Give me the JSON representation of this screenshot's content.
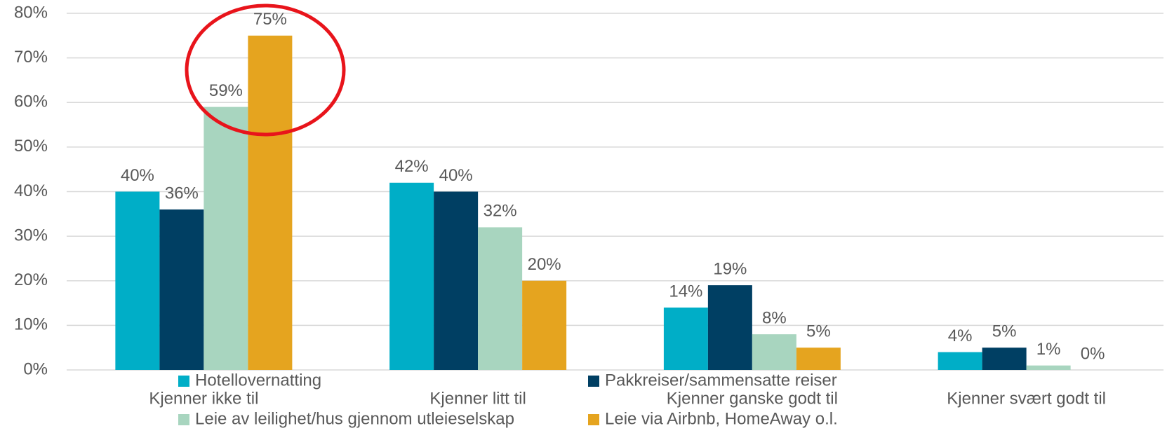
{
  "chart_data": {
    "type": "bar",
    "categories": [
      "Kjenner ikke til",
      "Kjenner litt til",
      "Kjenner ganske godt til",
      "Kjenner svært godt til"
    ],
    "series": [
      {
        "name": "Hotellovernatting",
        "color": "#00aec7",
        "values": [
          40,
          42,
          14,
          4
        ],
        "value_labels": [
          "40%",
          "42%",
          "14%",
          "4%"
        ]
      },
      {
        "name": "Pakkreiser/sammensatte reiser",
        "color": "#003f63",
        "values": [
          36,
          40,
          19,
          5
        ],
        "value_labels": [
          "36%",
          "40%",
          "19%",
          "5%"
        ]
      },
      {
        "name": "Leie av leilighet/hus gjennom utleieselskap",
        "color": "#a8d5bf",
        "values": [
          59,
          32,
          8,
          1
        ],
        "value_labels": [
          "59%",
          "32%",
          "8%",
          "1%"
        ]
      },
      {
        "name": "Leie via Airbnb, HomeAway o.l.",
        "color": "#e5a41f",
        "values": [
          75,
          20,
          5,
          0
        ],
        "value_labels": [
          "75%",
          "20%",
          "5%",
          "0%"
        ]
      }
    ],
    "ylim": [
      0,
      80
    ],
    "yticks": [
      {
        "value": 0,
        "label": "0%"
      },
      {
        "value": 10,
        "label": "10%"
      },
      {
        "value": 20,
        "label": "20%"
      },
      {
        "value": 30,
        "label": "30%"
      },
      {
        "value": 40,
        "label": "40%"
      },
      {
        "value": 50,
        "label": "50%"
      },
      {
        "value": 60,
        "label": "60%"
      },
      {
        "value": 70,
        "label": "70%"
      },
      {
        "value": 80,
        "label": "80%"
      }
    ],
    "grid": true,
    "legend": "bottom"
  }
}
